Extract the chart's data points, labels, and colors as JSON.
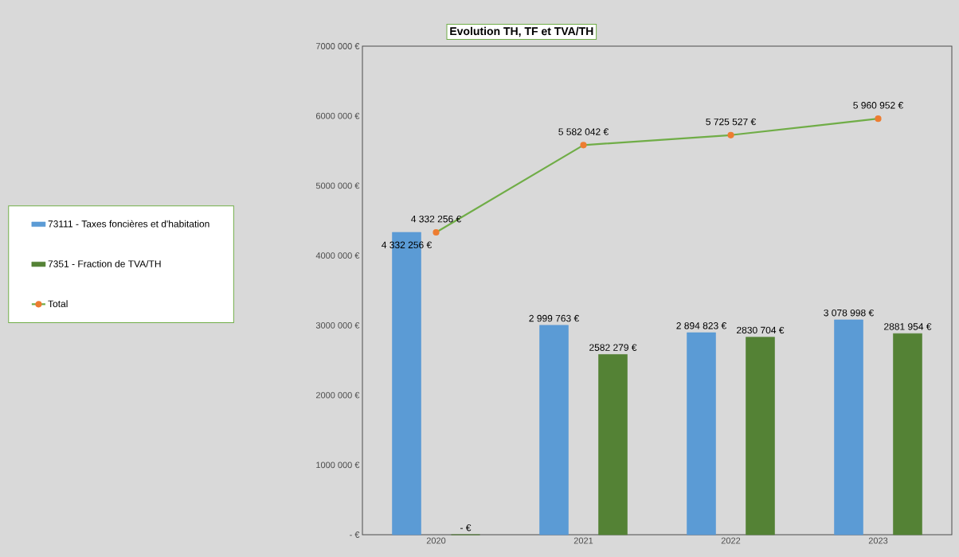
{
  "chart_data": {
    "type": "bar",
    "title": "Evolution TH, TF et TVA/TH",
    "categories": [
      "2020",
      "2021",
      "2022",
      "2023"
    ],
    "series": [
      {
        "name": "73111 - Taxes foncières et d'habitation",
        "color": "#5b9bd5",
        "values": [
          4332256,
          2999763,
          2894823,
          3078998
        ],
        "value_labels": [
          "4 332 256 €",
          "2 999 763 €",
          "2 894 823 €",
          "3 078 998 €"
        ]
      },
      {
        "name": "7351 - Fraction de TVA/TH",
        "color": "#548235",
        "values": [
          0,
          2582279,
          2830704,
          2881954
        ],
        "value_labels": [
          "-  €",
          "2582 279 €",
          "2830 704 €",
          "2881 954 €"
        ]
      },
      {
        "name": "Total",
        "type": "line",
        "color": "#70ad47",
        "marker": "circle",
        "values": [
          4332256,
          5582042,
          5725527,
          5960952
        ],
        "value_labels": [
          "4 332 256 €",
          "5 582 042 €",
          "5 725 527 €",
          "5 960 952 €"
        ]
      }
    ],
    "ylim": [
      0,
      7000000
    ],
    "yticks": [
      {
        "value": 0,
        "label": "-  €"
      },
      {
        "value": 1000000,
        "label": "1000 000 €"
      },
      {
        "value": 2000000,
        "label": "2000 000 €"
      },
      {
        "value": 3000000,
        "label": "3000 000 €"
      },
      {
        "value": 4000000,
        "label": "4000 000 €"
      },
      {
        "value": 5000000,
        "label": "5000 000 €"
      },
      {
        "value": 6000000,
        "label": "6000 000 €"
      },
      {
        "value": 7000000,
        "label": "7000 000 €"
      }
    ],
    "grid": false,
    "legend": "left"
  }
}
